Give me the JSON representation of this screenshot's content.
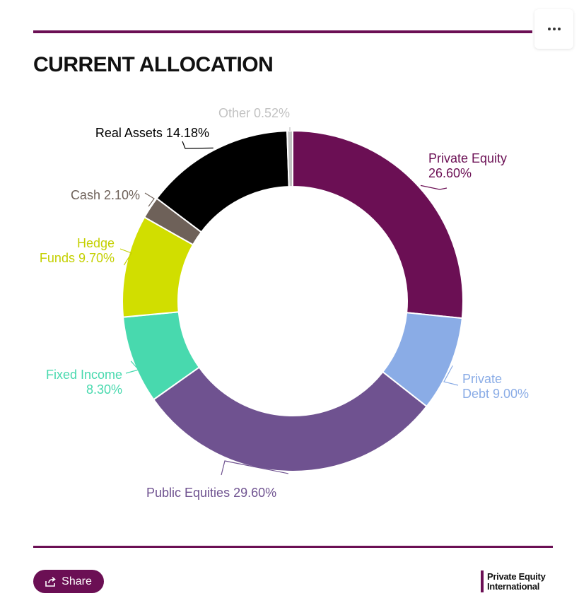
{
  "header": {
    "title": "CURRENT ALLOCATION",
    "menu_icon": "more-horizontal-icon"
  },
  "chart_data": {
    "type": "pie",
    "donut": true,
    "title": "CURRENT ALLOCATION",
    "categories": [
      "Private Equity",
      "Private Debt",
      "Public Equities",
      "Fixed Income",
      "Hedge Funds",
      "Cash",
      "Real Assets",
      "Other"
    ],
    "values": [
      26.6,
      9.0,
      29.6,
      8.3,
      9.7,
      2.1,
      14.18,
      0.52
    ],
    "labels": [
      [
        "Private Equity",
        "26.60%"
      ],
      [
        "Private",
        "Debt 9.00%"
      ],
      [
        "Public Equities 29.60%"
      ],
      [
        "Fixed Income",
        "8.30%"
      ],
      [
        "Hedge",
        "Funds 9.70%"
      ],
      [
        "Cash 2.10%"
      ],
      [
        "Real Assets 14.18%"
      ],
      [
        "Other 0.52%"
      ]
    ],
    "colors": [
      "#6b0f54",
      "#8aace6",
      "#6f5290",
      "#48d9ae",
      "#d1de00",
      "#6e6159",
      "#000000",
      "#c2c2c2"
    ],
    "label_colors": [
      "#6b0f54",
      "#8aace6",
      "#6f5290",
      "#48d9ae",
      "#c4d000",
      "#6e6159",
      "#000000",
      "#c2c2c2"
    ]
  },
  "footer": {
    "share_label": "Share",
    "share_icon": "share-icon",
    "logo_line1": "Private Equity",
    "logo_line2": "International"
  }
}
